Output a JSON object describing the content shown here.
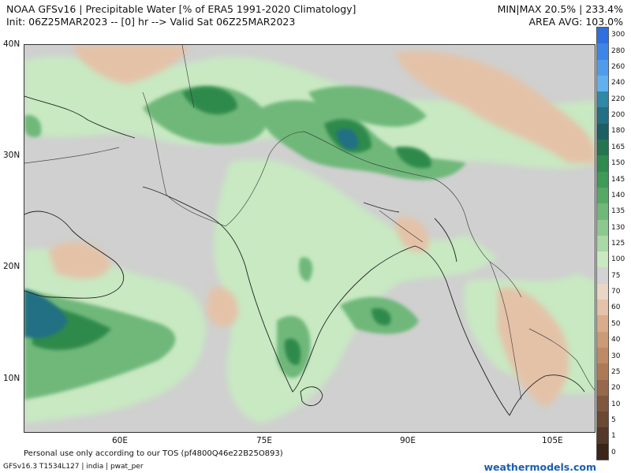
{
  "header": {
    "title_line1": "NOAA GFSv16 |  Precipitable Water [% of ERA5 1991-2020 Climatology]",
    "title_line2": "Init: 06Z25MAR2023 -- [0] hr --> Valid Sat 06Z25MAR2023",
    "stats_line1": "MIN|MAX 20.5% | 233.4%",
    "stats_line2": "AREA AVG: 103.0%"
  },
  "axes": {
    "lat_labels": [
      "40N",
      "30N",
      "20N",
      "10N"
    ],
    "lon_labels": [
      "60E",
      "75E",
      "90E",
      "105E"
    ]
  },
  "colorbar": {
    "labels": [
      "300",
      "280",
      "260",
      "240",
      "220",
      "200",
      "180",
      "165",
      "150",
      "145",
      "140",
      "135",
      "130",
      "125",
      "100",
      "75",
      "70",
      "60",
      "50",
      "40",
      "30",
      "25",
      "20",
      "10",
      "5",
      "1",
      "0"
    ],
    "colors": [
      "#2f6fe0",
      "#3d86e6",
      "#4f9cec",
      "#62b0ee",
      "#2e88a6",
      "#236f84",
      "#1b5f63",
      "#24744f",
      "#2f8a4b",
      "#3f9957",
      "#56a866",
      "#70b87a",
      "#8cc88f",
      "#aad8a7",
      "#c8e9c2",
      "#d3d3d3",
      "#e9d6c5",
      "#e4c2a8",
      "#d9ac8a",
      "#cc9a74",
      "#bf8a64",
      "#ae7a56",
      "#97684a",
      "#7f573e",
      "#6b4834",
      "#553829",
      "#3b2418"
    ]
  },
  "footer": {
    "tos": "Personal use only according to our TOS (pf4800Q46e22B25O893)",
    "model": "GFSv16.3 T1534L127 | india | pwat_per",
    "brand": "weathermodels.com"
  }
}
